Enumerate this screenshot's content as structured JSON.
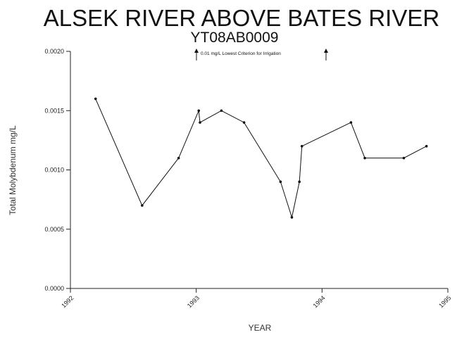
{
  "chart_data": {
    "type": "line",
    "title": "ALSEK RIVER ABOVE BATES RIVER",
    "subtitle": "YT08AB0009",
    "xlabel": "YEAR",
    "ylabel": "Total Molybdenum mg/L",
    "xlim": [
      1992,
      1995
    ],
    "ylim": [
      0,
      0.002
    ],
    "x_ticks": [
      1992,
      1993,
      1994,
      1995
    ],
    "x_tick_labels": [
      "1992",
      "1993",
      "1994",
      "1995"
    ],
    "y_ticks": [
      0,
      0.0005,
      0.001,
      0.0015,
      0.002
    ],
    "y_tick_labels": [
      "0.0000",
      "0.0005",
      "0.0010",
      "0.0015",
      "0.0020"
    ],
    "annotation": "0.01  mg/L Lowest Criterion for Irrigation",
    "grid": false,
    "series": [
      {
        "x": [
          1992.2,
          1992.57,
          1992.86,
          1993.02,
          1993.03,
          1993.2,
          1993.38,
          1993.67,
          1993.76,
          1993.82,
          1993.84,
          1994.23,
          1994.34,
          1994.65,
          1994.83
        ],
        "y": [
          0.0016,
          0.0007,
          0.0011,
          0.0015,
          0.0014,
          0.0015,
          0.0014,
          0.0009,
          0.0006,
          0.0009,
          0.0012,
          0.0014,
          0.0011,
          0.0011,
          0.0012
        ]
      }
    ]
  }
}
